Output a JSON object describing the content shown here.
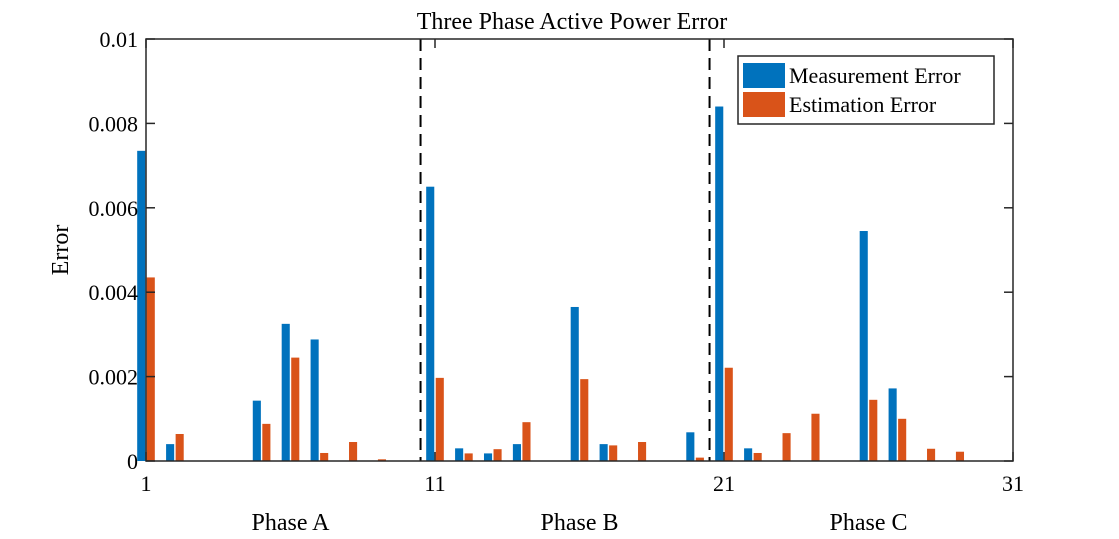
{
  "chart_data": {
    "type": "bar",
    "title": "Three Phase Active Power Error",
    "xlabel": "",
    "ylabel": "Error",
    "xlim": [
      1,
      31
    ],
    "ylim": [
      0,
      0.01
    ],
    "xticks": [
      "1",
      "11",
      "21",
      "31"
    ],
    "yticks": [
      "0",
      "0.002",
      "0.004",
      "0.006",
      "0.008",
      "0.01"
    ],
    "group_labels": [
      {
        "label": "Phase A",
        "x": 6
      },
      {
        "label": "Phase B",
        "x": 16
      },
      {
        "label": "Phase C",
        "x": 26
      }
    ],
    "dividers": [
      10.5,
      20.5
    ],
    "x": [
      1,
      2,
      3,
      4,
      5,
      6,
      7,
      8,
      9,
      10,
      11,
      12,
      13,
      14,
      15,
      16,
      17,
      18,
      19,
      20,
      21,
      22,
      23,
      24,
      25,
      26,
      27,
      28,
      29,
      30
    ],
    "legend_position": "top-right",
    "series": [
      {
        "name": "Measurement Error",
        "color": "#0072BD",
        "values": [
          0.00735,
          0.0004,
          0,
          0,
          0.00143,
          0.00325,
          0.00288,
          0,
          0,
          0,
          0.0065,
          0.0003,
          0.00018,
          0.0004,
          0,
          0.00365,
          0.0004,
          0,
          0,
          0.00068,
          0.0084,
          0.0003,
          0,
          0,
          0,
          0.00545,
          0.00172,
          0,
          0,
          0
        ]
      },
      {
        "name": "Estimation Error",
        "color": "#D95319",
        "values": [
          0.00435,
          0.00064,
          0,
          0,
          0.00088,
          0.00245,
          0.00019,
          0.00045,
          4e-05,
          0,
          0.00197,
          0.00018,
          0.00028,
          0.00092,
          0,
          0.00194,
          0.00037,
          0.00045,
          0,
          8e-05,
          0.00221,
          0.00019,
          0.00066,
          0.00112,
          0,
          0.00145,
          0.001,
          0.00029,
          0.00022,
          0
        ]
      }
    ]
  }
}
